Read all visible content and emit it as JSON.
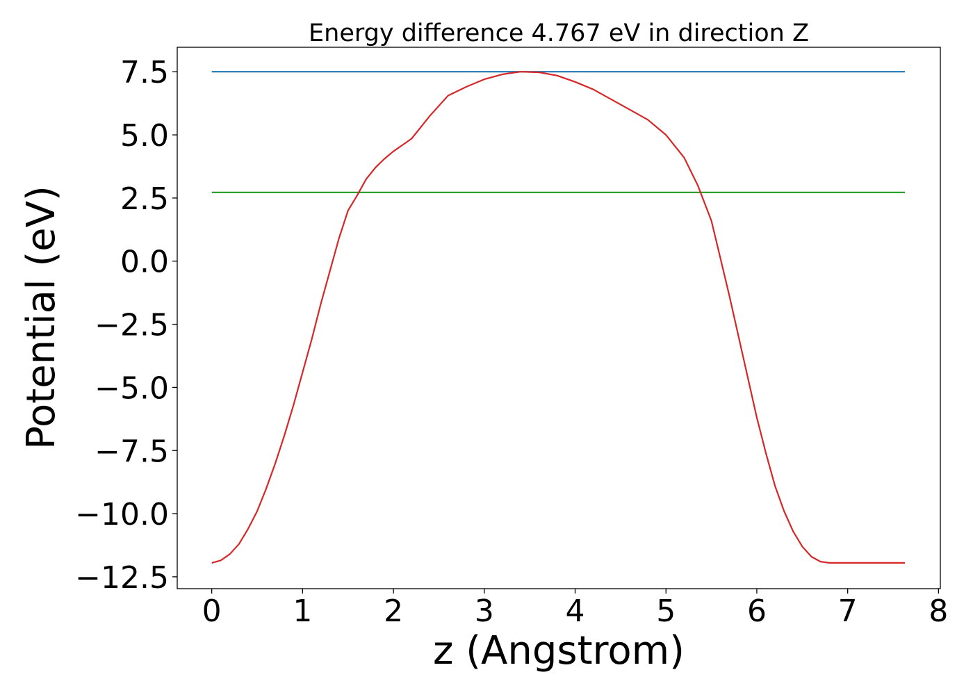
{
  "chart_data": {
    "type": "line",
    "title": "Energy difference 4.767 eV in direction Z",
    "xlabel": "z (Angstrom)",
    "ylabel": "Potential (eV)",
    "xlim": [
      -0.38,
      8.02
    ],
    "ylim": [
      -12.97,
      8.47
    ],
    "x_ticks": [
      0,
      1,
      2,
      3,
      4,
      5,
      6,
      7,
      8
    ],
    "y_ticks": [
      -12.5,
      -10.0,
      -7.5,
      -5.0,
      -2.5,
      0.0,
      2.5,
      5.0,
      7.5
    ],
    "x_tick_labels": [
      "0",
      "1",
      "2",
      "3",
      "4",
      "5",
      "6",
      "7",
      "8"
    ],
    "y_tick_labels": [
      "−12.5",
      "−10.0",
      "−7.5",
      "−5.0",
      "−2.5",
      "0.0",
      "2.5",
      "5.0",
      "7.5"
    ],
    "grid": false,
    "legend": "none",
    "series": [
      {
        "color": "#1f77b4",
        "x": [
          0,
          7.63
        ],
        "y": [
          7.5,
          7.5
        ]
      },
      {
        "color": "#2ca02c",
        "x": [
          0,
          7.63
        ],
        "y": [
          2.72,
          2.72
        ]
      },
      {
        "color": "#d62728",
        "x": [
          0,
          0.1,
          0.2,
          0.3,
          0.4,
          0.5,
          0.6,
          0.7,
          0.8,
          0.9,
          1.0,
          1.1,
          1.2,
          1.3,
          1.4,
          1.5,
          1.6,
          1.7,
          1.8,
          1.9,
          2.0,
          2.1,
          2.2,
          2.3,
          2.4,
          2.5,
          2.6,
          2.8,
          3.0,
          3.2,
          3.4,
          3.6,
          3.8,
          4.0,
          4.2,
          4.4,
          4.6,
          4.8,
          5.0,
          5.2,
          5.35,
          5.5,
          5.6,
          5.7,
          5.8,
          5.9,
          6.0,
          6.1,
          6.2,
          6.3,
          6.4,
          6.5,
          6.6,
          6.7,
          6.8,
          6.9,
          7.0,
          7.1,
          7.2,
          7.3,
          7.4,
          7.5,
          7.6,
          7.63
        ],
        "y": [
          -11.95,
          -11.85,
          -11.6,
          -11.2,
          -10.6,
          -9.9,
          -9.0,
          -8.0,
          -6.9,
          -5.7,
          -4.4,
          -3.1,
          -1.7,
          -0.4,
          0.9,
          2.0,
          2.6,
          3.25,
          3.7,
          4.05,
          4.35,
          4.6,
          4.85,
          5.3,
          5.75,
          6.15,
          6.55,
          6.9,
          7.2,
          7.4,
          7.5,
          7.48,
          7.35,
          7.1,
          6.8,
          6.4,
          6.0,
          5.6,
          5.0,
          4.1,
          3.0,
          1.6,
          0.1,
          -1.4,
          -3.0,
          -4.6,
          -6.2,
          -7.6,
          -8.9,
          -9.9,
          -10.7,
          -11.3,
          -11.7,
          -11.9,
          -11.95,
          -11.95,
          -11.95,
          -11.95,
          -11.95,
          -11.95,
          -11.95,
          -11.95,
          -11.95,
          -11.95
        ]
      }
    ]
  }
}
